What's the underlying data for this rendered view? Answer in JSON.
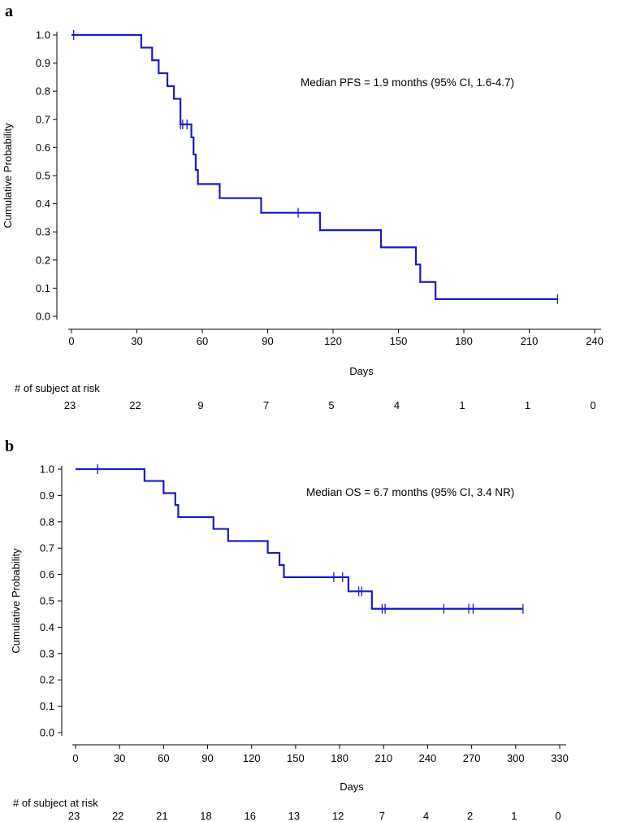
{
  "chart_data": [
    {
      "type": "line",
      "subtype": "kaplan-meier",
      "panel_label": "a",
      "annotation": "Median PFS = 1.9 months (95% CI, 1.6-4.7)",
      "xlabel": "Days",
      "ylabel": "Cumulative Probability",
      "xlim": [
        0,
        240
      ],
      "ylim": [
        0,
        1
      ],
      "xticks": [
        0,
        30,
        60,
        90,
        120,
        150,
        180,
        210,
        240
      ],
      "yticks": [
        "0.0",
        "0.1",
        "0.2",
        "0.3",
        "0.4",
        "0.5",
        "0.6",
        "0.7",
        "0.8",
        "0.9",
        "1.0"
      ],
      "steps": [
        [
          0,
          1.0
        ],
        [
          32,
          0.955
        ],
        [
          37,
          0.91
        ],
        [
          40,
          0.864
        ],
        [
          44,
          0.818
        ],
        [
          47,
          0.773
        ],
        [
          50,
          0.682
        ],
        [
          55,
          0.636
        ],
        [
          56,
          0.575
        ],
        [
          57,
          0.52
        ],
        [
          58,
          0.47
        ],
        [
          68,
          0.42
        ],
        [
          87,
          0.368
        ],
        [
          114,
          0.306
        ],
        [
          142,
          0.245
        ],
        [
          158,
          0.184
        ],
        [
          160,
          0.122
        ],
        [
          167,
          0.061
        ],
        [
          223,
          0.061
        ]
      ],
      "censor": [
        [
          1,
          1.0
        ],
        [
          50,
          0.682
        ],
        [
          51,
          0.682
        ],
        [
          53,
          0.682
        ],
        [
          104,
          0.368
        ],
        [
          223,
          0.061
        ]
      ],
      "risk_table_label": "# of subject at risk",
      "risk_x": [
        0,
        30,
        60,
        90,
        120,
        150,
        180,
        210,
        240
      ],
      "at_risk": [
        "23",
        "22",
        "9",
        "7",
        "5",
        "4",
        "1",
        "1",
        "0"
      ]
    },
    {
      "type": "line",
      "subtype": "kaplan-meier",
      "panel_label": "b",
      "annotation": "Median OS = 6.7 months (95% CI, 3.4 NR)",
      "xlabel": "Days",
      "ylabel": "Cumulative Probability",
      "xlim": [
        0,
        330
      ],
      "ylim": [
        0,
        1
      ],
      "xticks": [
        0,
        30,
        60,
        90,
        120,
        150,
        180,
        210,
        240,
        270,
        300,
        330
      ],
      "yticks": [
        "0.0",
        "0.1",
        "0.2",
        "0.3",
        "0.4",
        "0.5",
        "0.6",
        "0.7",
        "0.8",
        "0.9",
        "1.0"
      ],
      "steps": [
        [
          0,
          1.0
        ],
        [
          47,
          0.955
        ],
        [
          60,
          0.909
        ],
        [
          68,
          0.864
        ],
        [
          70,
          0.818
        ],
        [
          94,
          0.773
        ],
        [
          104,
          0.727
        ],
        [
          131,
          0.682
        ],
        [
          139,
          0.636
        ],
        [
          142,
          0.59
        ],
        [
          186,
          0.536
        ],
        [
          202,
          0.47
        ],
        [
          305,
          0.47
        ]
      ],
      "censor": [
        [
          15,
          1.0
        ],
        [
          176,
          0.59
        ],
        [
          182,
          0.59
        ],
        [
          193,
          0.536
        ],
        [
          195,
          0.536
        ],
        [
          209,
          0.47
        ],
        [
          211,
          0.47
        ],
        [
          251,
          0.47
        ],
        [
          268,
          0.47
        ],
        [
          271,
          0.47
        ],
        [
          305,
          0.47
        ]
      ],
      "risk_table_label": "# of subject at risk",
      "risk_x": [
        0,
        30,
        60,
        90,
        120,
        150,
        180,
        210,
        240,
        270,
        300,
        330
      ],
      "at_risk": [
        "23",
        "22",
        "21",
        "18",
        "16",
        "13",
        "12",
        "7",
        "4",
        "2",
        "1",
        "0"
      ]
    }
  ]
}
